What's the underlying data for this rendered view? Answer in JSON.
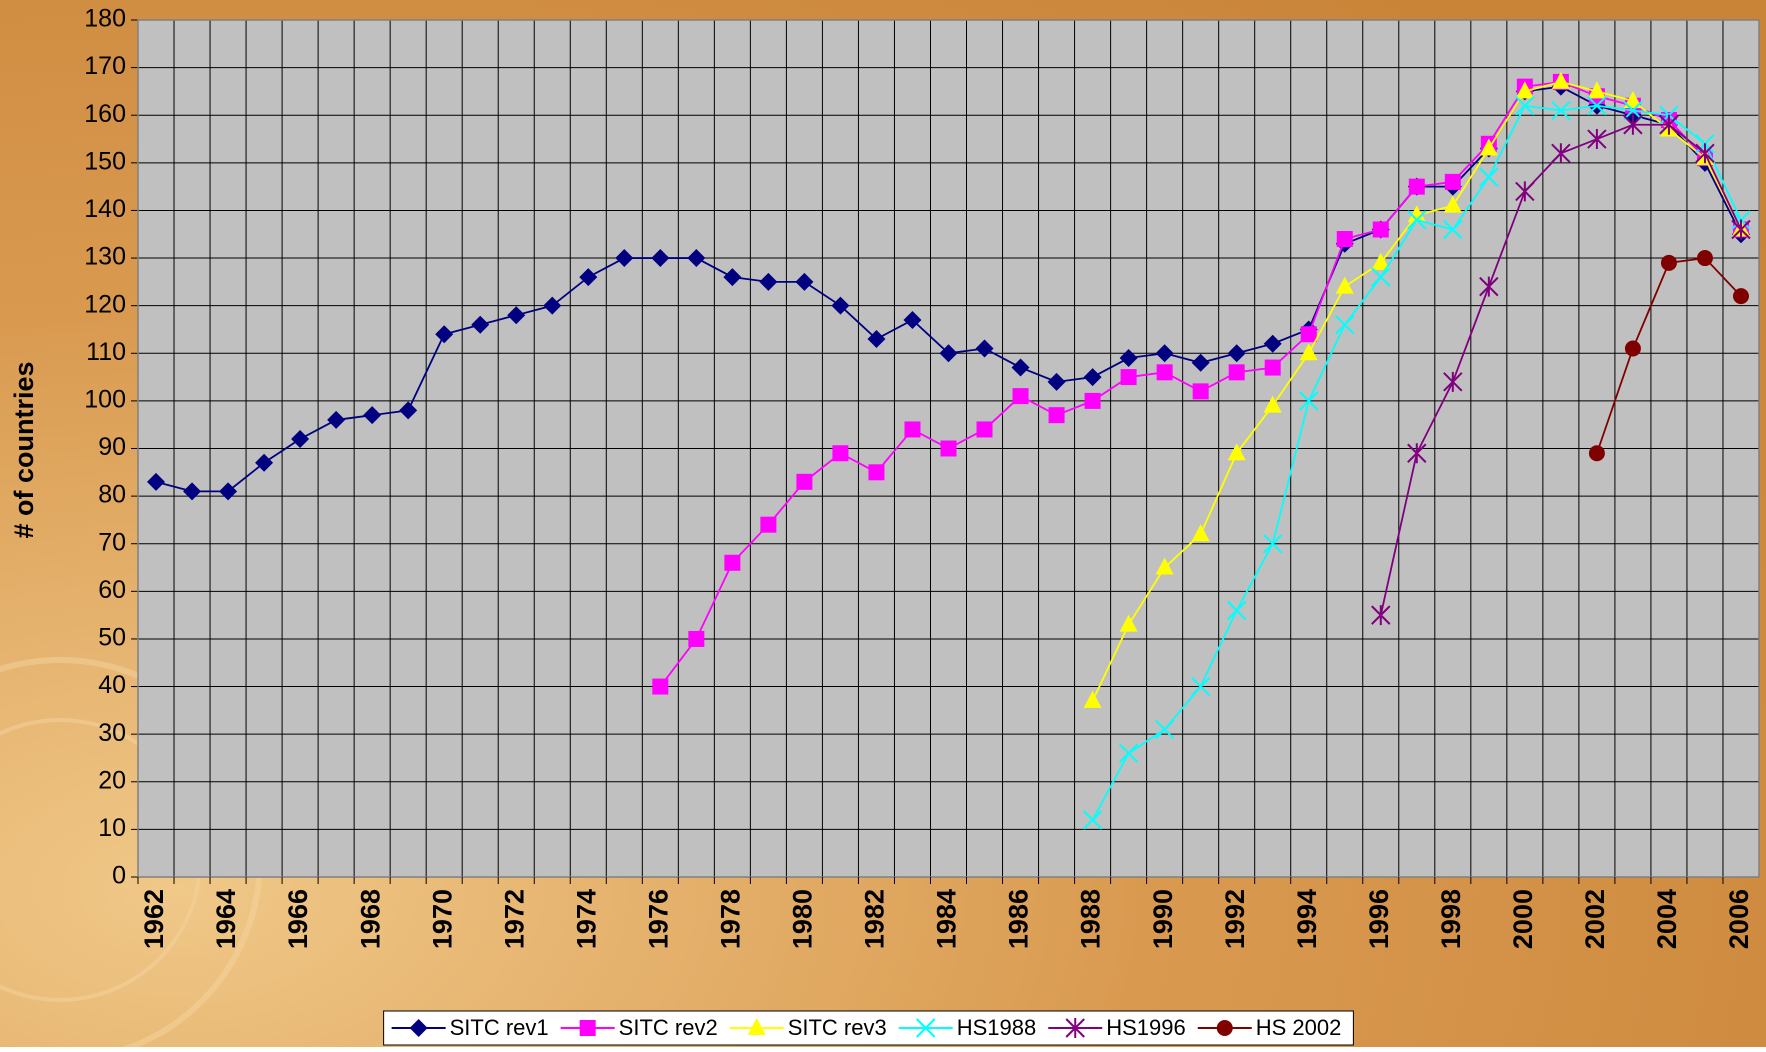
{
  "chart_data": {
    "type": "line",
    "y_label": "# of countries",
    "categories": [
      "1962",
      null,
      "1964",
      null,
      "1966",
      null,
      "1968",
      null,
      "1970",
      null,
      "1972",
      null,
      "1974",
      null,
      "1976",
      null,
      "1978",
      null,
      "1980",
      null,
      "1982",
      null,
      "1984",
      null,
      "1986",
      null,
      "1988",
      null,
      "1990",
      null,
      "1992",
      null,
      "1994",
      null,
      "1996",
      null,
      "1998",
      null,
      "2000",
      null,
      "2002",
      null,
      "2004",
      null,
      "2006"
    ],
    "series": [
      {
        "name": "SITC rev1",
        "color": "#000080",
        "marker": "diamond",
        "values": [
          83,
          81,
          81,
          87,
          92,
          96,
          97,
          98,
          114,
          116,
          118,
          120,
          126,
          130,
          130,
          130,
          126,
          125,
          125,
          120,
          113,
          117,
          110,
          111,
          107,
          104,
          105,
          109,
          110,
          108,
          110,
          112,
          115,
          133,
          136,
          145,
          145,
          153,
          165,
          166,
          162,
          160,
          158,
          150,
          135
        ]
      },
      {
        "name": "SITC rev2",
        "color": "#ff00ff",
        "marker": "square",
        "values": [
          null,
          null,
          null,
          null,
          null,
          null,
          null,
          null,
          null,
          null,
          null,
          null,
          null,
          null,
          40,
          50,
          66,
          74,
          83,
          89,
          85,
          94,
          90,
          94,
          101,
          97,
          100,
          105,
          106,
          102,
          106,
          107,
          114,
          134,
          136,
          145,
          146,
          154,
          166,
          167,
          164,
          162,
          159,
          151,
          136
        ]
      },
      {
        "name": "SITC rev3",
        "color": "#ffff00",
        "marker": "triangle",
        "values": [
          null,
          null,
          null,
          null,
          null,
          null,
          null,
          null,
          null,
          null,
          null,
          null,
          null,
          null,
          null,
          null,
          null,
          null,
          null,
          null,
          null,
          null,
          null,
          null,
          null,
          null,
          37,
          53,
          65,
          72,
          89,
          99,
          110,
          124,
          129,
          139,
          141,
          153,
          165,
          167,
          165,
          163,
          157,
          151,
          136
        ]
      },
      {
        "name": "HS1988",
        "color": "#00ffff",
        "marker": "x",
        "values": [
          null,
          null,
          null,
          null,
          null,
          null,
          null,
          null,
          null,
          null,
          null,
          null,
          null,
          null,
          null,
          null,
          null,
          null,
          null,
          null,
          null,
          null,
          null,
          null,
          null,
          null,
          12,
          26,
          31,
          40,
          56,
          70,
          100,
          116,
          126,
          138,
          136,
          147,
          162,
          161,
          162,
          161,
          160,
          154,
          138
        ]
      },
      {
        "name": "HS1996",
        "color": "#800080",
        "marker": "star",
        "values": [
          null,
          null,
          null,
          null,
          null,
          null,
          null,
          null,
          null,
          null,
          null,
          null,
          null,
          null,
          null,
          null,
          null,
          null,
          null,
          null,
          null,
          null,
          null,
          null,
          null,
          null,
          null,
          null,
          null,
          null,
          null,
          null,
          null,
          null,
          55,
          89,
          104,
          124,
          144,
          152,
          155,
          158,
          158,
          152,
          136
        ]
      },
      {
        "name": "HS 2002",
        "color": "#800000",
        "marker": "circle",
        "values": [
          null,
          null,
          null,
          null,
          null,
          null,
          null,
          null,
          null,
          null,
          null,
          null,
          null,
          null,
          null,
          null,
          null,
          null,
          null,
          null,
          null,
          null,
          null,
          null,
          null,
          null,
          null,
          null,
          null,
          null,
          null,
          null,
          null,
          null,
          null,
          null,
          null,
          null,
          null,
          null,
          89,
          111,
          129,
          130,
          122
        ]
      }
    ],
    "ylim": [
      0,
      180
    ],
    "yticks": [
      0,
      10,
      20,
      30,
      40,
      50,
      60,
      70,
      80,
      90,
      100,
      110,
      120,
      130,
      140,
      150,
      160,
      170,
      180
    ],
    "grid": true,
    "legend": "bottom",
    "plot_background": "#c0c0c0"
  }
}
